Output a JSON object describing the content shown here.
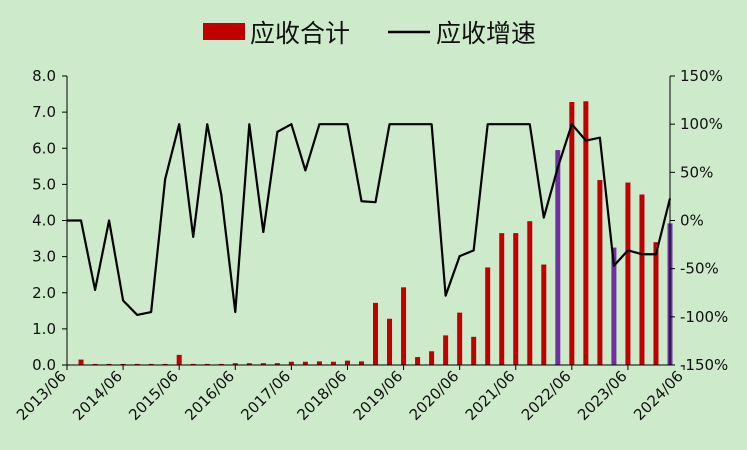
{
  "legend": {
    "bar_label": "应收合计",
    "line_label": "应收增速"
  },
  "colors": {
    "background": "#cdeacb",
    "bar": "#c00000",
    "bar_highlight": "#7030a0",
    "line": "#000000",
    "axis": "#000000",
    "text": "#111111"
  },
  "chart_data": {
    "type": "bar",
    "combo": "bar+line (dual axis)",
    "grid": false,
    "legend_position": "top-center",
    "x_tick_labels": [
      "2013/06",
      "2014/06",
      "2015/06",
      "2016/06",
      "2017/06",
      "2018/06",
      "2019/06",
      "2020/06",
      "2021/06",
      "2022/06",
      "2023/06",
      "2024/06"
    ],
    "left_axis": {
      "ylim": [
        0,
        8
      ],
      "ticks": [
        "0.0",
        "1.0",
        "2.0",
        "3.0",
        "4.0",
        "5.0",
        "6.0",
        "7.0",
        "8.0"
      ]
    },
    "right_axis": {
      "ylim": [
        -150,
        150
      ],
      "ticks": [
        "-150%",
        "-100%",
        "-50%",
        "0%",
        "50%",
        "100%",
        "150%"
      ]
    },
    "series": [
      {
        "name": "应收合计",
        "type": "bar",
        "axis": "left",
        "values": [
          0.01,
          0.15,
          0.03,
          0.03,
          0.03,
          0.03,
          0.03,
          0.03,
          0.28,
          0.03,
          0.03,
          0.03,
          0.05,
          0.05,
          0.05,
          0.05,
          0.09,
          0.09,
          0.1,
          0.09,
          0.12,
          0.1,
          1.72,
          1.28,
          2.15,
          0.22,
          0.38,
          0.82,
          1.45,
          0.78,
          2.7,
          3.65,
          3.65,
          3.98,
          2.78,
          5.95,
          7.28,
          7.3,
          5.12,
          3.25,
          5.05,
          4.72,
          3.4,
          3.92
        ]
      },
      {
        "name": "应收增速",
        "type": "line",
        "axis": "right",
        "values": [
          0,
          0,
          -72,
          0,
          -83,
          -98,
          -95,
          43,
          100,
          -17,
          100,
          27,
          -95,
          100,
          -12,
          92,
          100,
          52,
          100,
          100,
          100,
          20,
          19,
          100,
          100,
          100,
          100,
          -78,
          -37,
          -31,
          100,
          100,
          100,
          100,
          3,
          55,
          100,
          83,
          86,
          -47,
          -31,
          -35,
          -35,
          23
        ]
      }
    ],
    "highlighted_bar_indices": [
      35,
      39,
      43
    ]
  }
}
